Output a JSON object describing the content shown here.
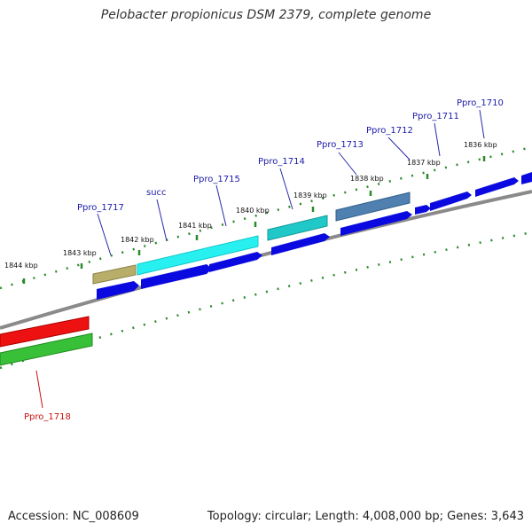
{
  "title": "Pelobacter propionicus DSM 2379, complete genome",
  "footer": {
    "accession": "Accession: NC_008609",
    "topology": "Topology: circular; Length: 4,008,000 bp; Genes: 3,643"
  },
  "colors": {
    "backbone": "#888888",
    "tick": "#2a8a2a",
    "kbp_label": "#111111",
    "gene_label_forward": "#1a1aaa",
    "gene_label_reverse": "#cc1111",
    "cds_forward": "#0a0ae0",
    "cds_reverse": "#35c035",
    "gene_reverse": "#ee1111"
  },
  "kbp_labels": [
    "1844 kbp",
    "1843 kbp",
    "1842 kbp",
    "1841 kbp",
    "1840 kbp",
    "1839 kbp",
    "1838 kbp",
    "1837 kbp",
    "1836 kbp"
  ],
  "gene_labels": [
    "Ppro_1717",
    "succ",
    "Ppro_1715",
    "Ppro_1714",
    "Ppro_1713",
    "Ppro_1712",
    "Ppro_1711",
    "Ppro_1710",
    "Ppro_1718"
  ]
}
